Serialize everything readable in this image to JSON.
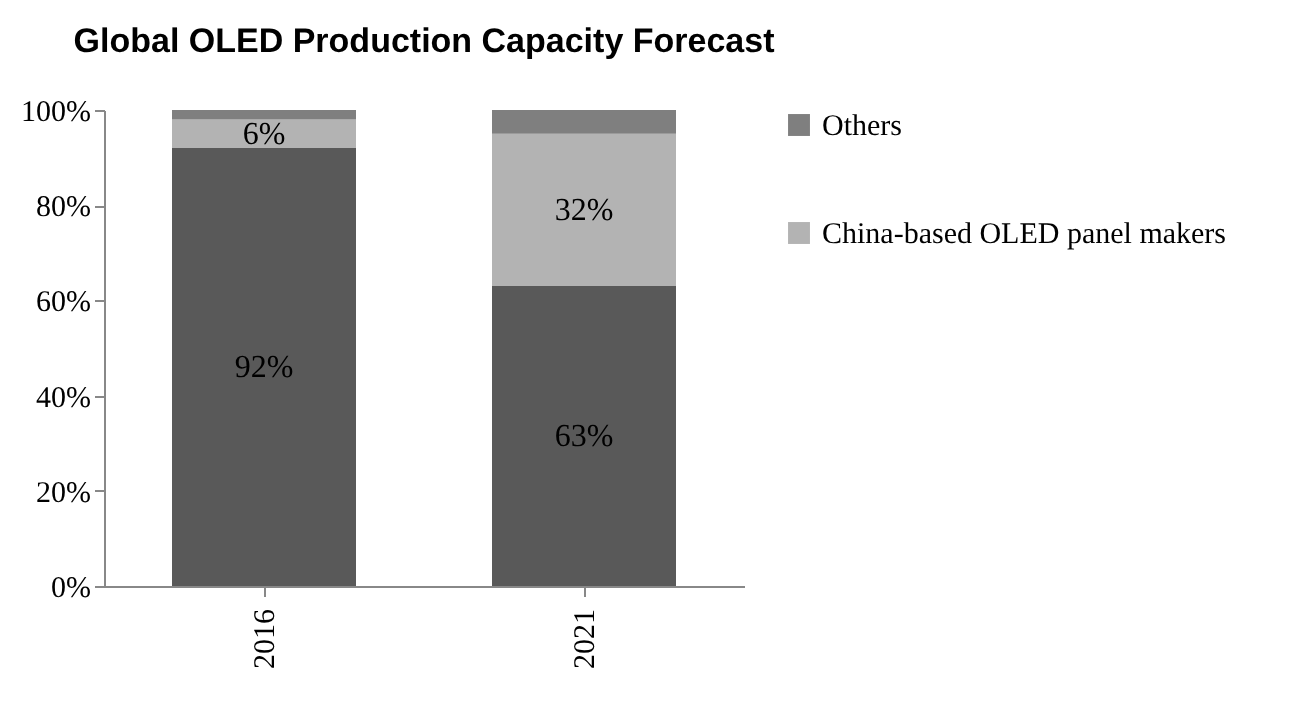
{
  "chart_data": {
    "type": "bar",
    "title": "Global OLED Production Capacity Forecast",
    "categories": [
      "2016",
      "2021"
    ],
    "stacked": true,
    "legend": "right",
    "ylim": [
      0,
      100
    ],
    "yticks": [
      {
        "value": 0,
        "label": "0%"
      },
      {
        "value": 20,
        "label": "20%"
      },
      {
        "value": 40,
        "label": "40%"
      },
      {
        "value": 60,
        "label": "60%"
      },
      {
        "value": 80,
        "label": "80%"
      },
      {
        "value": 100,
        "label": "100%"
      }
    ],
    "series": [
      {
        "color": "#595959",
        "values": [
          92,
          63
        ],
        "value_labels": [
          "92%",
          "63%"
        ]
      },
      {
        "name": "China-based OLED panel makers",
        "color": "#b3b3b3",
        "values": [
          6,
          32
        ],
        "value_labels": [
          "6%",
          "32%"
        ]
      },
      {
        "name": "Others",
        "color": "#7f7f7f",
        "values": [
          2,
          5
        ],
        "value_labels": [
          null,
          null
        ]
      }
    ]
  }
}
